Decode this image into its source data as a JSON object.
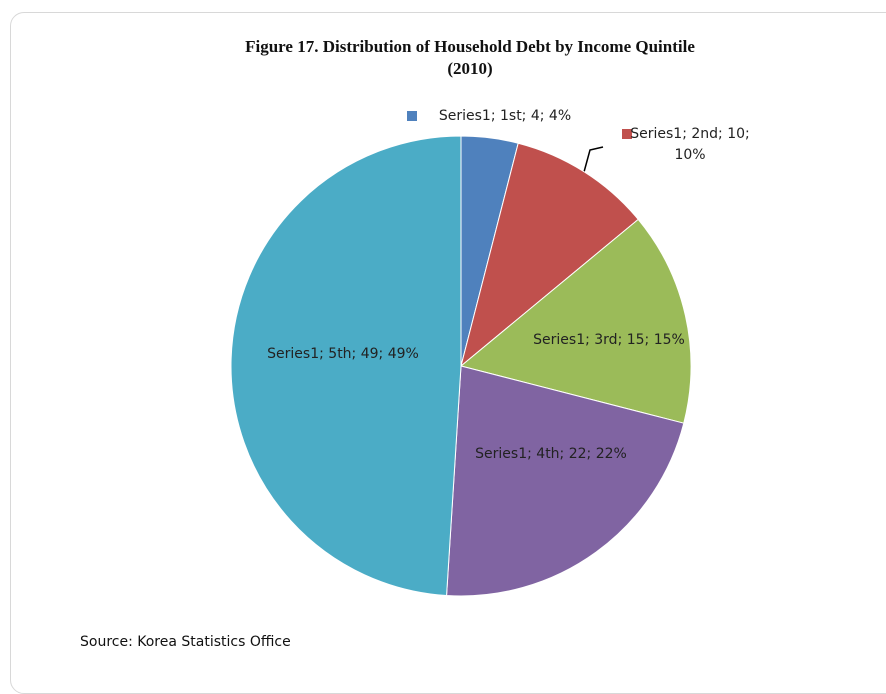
{
  "chart_data": {
    "type": "pie",
    "title": "Figure 17. Distribution of Household Debt by Income Quintile\n(2010)",
    "categories": [
      "1st",
      "2nd",
      "3rd",
      "4th",
      "5th"
    ],
    "values": [
      4,
      10,
      15,
      22,
      49
    ],
    "value_labels": [
      "Series1; 1st; 4; 4%",
      "Series1; 2nd; 10; 10%",
      "Series1; 3rd; 15; 15%",
      "Series1; 4th; 22; 22%",
      "Series1; 5th; 49; 49%"
    ],
    "colors": [
      "#4f81bd",
      "#c0504d",
      "#9bbb59",
      "#8064a2",
      "#4bacc6"
    ],
    "source": "Source: Korea Statistics Office"
  }
}
